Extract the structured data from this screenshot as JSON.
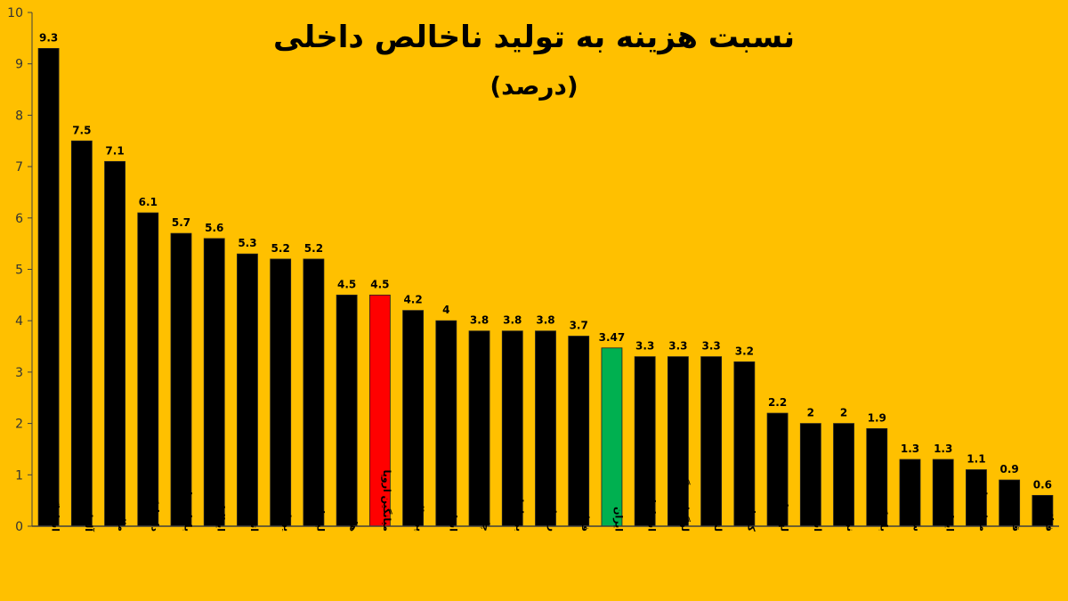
{
  "chart_data": {
    "type": "bar",
    "title": "نسبت هزینه به تولید ناخالص داخلی",
    "subtitle": "(درصد)",
    "xlabel": "",
    "ylabel": "",
    "ylim": [
      0,
      10
    ],
    "yticks": [
      0,
      1,
      2,
      3,
      4,
      5,
      6,
      7,
      8,
      9,
      10
    ],
    "grid": false,
    "legend": null,
    "categories": [
      "اسلواکی",
      "آلمان",
      "مالت",
      "دانمارک",
      "بلغارستان",
      "ایتالیا",
      "اتریش",
      "یونان",
      "لیتوانی",
      "هلند",
      "میانگین اروپا",
      "پرتغال",
      "اسلوونی",
      "چک",
      "بریتانیا",
      "رومانی",
      "فرانسه",
      "ایران",
      "اسپانیا",
      "لوگزامبورگ",
      "لتونی",
      "کرواسی",
      "لهستان",
      "استونی",
      "نروژ",
      "بلژیک",
      "سوئد",
      "ایرلند",
      "مجارستان",
      "قبرس",
      "فنلاند"
    ],
    "values": [
      9.3,
      7.5,
      7.1,
      6.1,
      5.7,
      5.6,
      5.3,
      5.2,
      5.2,
      4.5,
      4.5,
      4.2,
      4,
      3.8,
      3.8,
      3.8,
      3.7,
      3.47,
      3.3,
      3.3,
      3.3,
      3.2,
      2.2,
      2,
      2,
      1.9,
      1.3,
      1.3,
      1.1,
      0.9,
      0.6
    ],
    "value_labels": [
      "9.3",
      "7.5",
      "7.1",
      "6.1",
      "5.7",
      "5.6",
      "5.3",
      "5.2",
      "5.2",
      "4.5",
      "4.5",
      "4.2",
      "4",
      "3.8",
      "3.8",
      "3.8",
      "3.7",
      "3.47",
      "3.3",
      "3.3",
      "3.3",
      "3.2",
      "2.2",
      "2",
      "2",
      "1.9",
      "1.3",
      "1.3",
      "1.1",
      "0.9",
      "0.6"
    ],
    "highlights": {
      "میانگین اروپا": "#FF0000",
      "ایران": "#00B050"
    }
  },
  "colors": {
    "background": "#FFC000",
    "bar_default": "#000000",
    "bar_europe_average": "#FF0000",
    "bar_iran": "#00B050",
    "axis": "#3f3f3f",
    "text": "#000000"
  }
}
